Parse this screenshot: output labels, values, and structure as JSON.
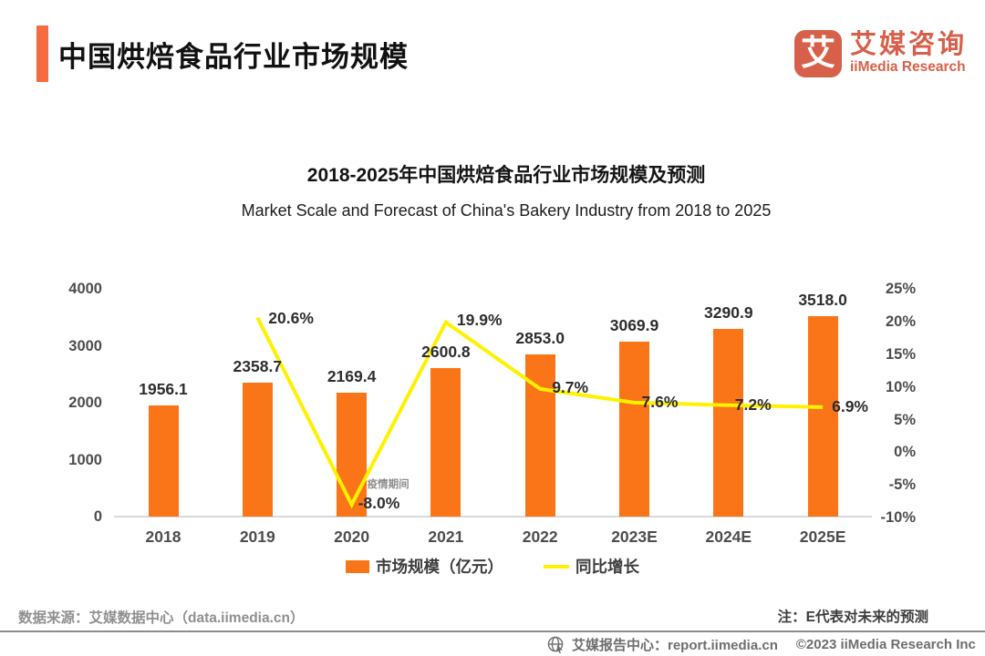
{
  "header": {
    "title": "中国烘焙食品行业市场规模",
    "brand": {
      "logo_char": "艾",
      "name_cn": "艾媒咨询",
      "name_en": "iiMedia Research"
    }
  },
  "chart_data": {
    "type": "bar",
    "title": "2018-2025年中国烘焙食品行业市场规模及预测",
    "subtitle": "Market Scale and Forecast of China's Bakery Industry from 2018 to 2025",
    "categories": [
      "2018",
      "2019",
      "2020",
      "2021",
      "2022",
      "2023E",
      "2024E",
      "2025E"
    ],
    "series": [
      {
        "name": "市场规模（亿元）",
        "type": "bar",
        "color": "#FA7517",
        "values": [
          1956.1,
          2358.7,
          2169.4,
          2600.8,
          2853.0,
          3069.9,
          3290.9,
          3518.0
        ]
      },
      {
        "name": "同比增长",
        "type": "line",
        "color": "#FFF100",
        "values": [
          null,
          20.6,
          -8.0,
          19.9,
          9.7,
          7.6,
          7.2,
          6.9
        ]
      }
    ],
    "left_axis": {
      "ticks": [
        4000,
        3000,
        2000,
        1000,
        0
      ],
      "range": [
        0,
        4000
      ]
    },
    "right_axis": {
      "ticks": [
        "25%",
        "20%",
        "15%",
        "10%",
        "5%",
        "0%",
        "-5%",
        "-10%"
      ],
      "range_pct": [
        -10,
        25
      ]
    },
    "annotations": [
      {
        "text": "疫情期间",
        "category": "2020"
      }
    ],
    "legend_position": "bottom",
    "grid": false
  },
  "footer": {
    "source": "数据来源：艾媒数据中心（data.iimedia.cn）",
    "note": "注：E代表对未来的预测",
    "report_center": "艾媒报告中心：report.iimedia.cn",
    "copyright": "©2023 iiMedia Research  Inc"
  }
}
